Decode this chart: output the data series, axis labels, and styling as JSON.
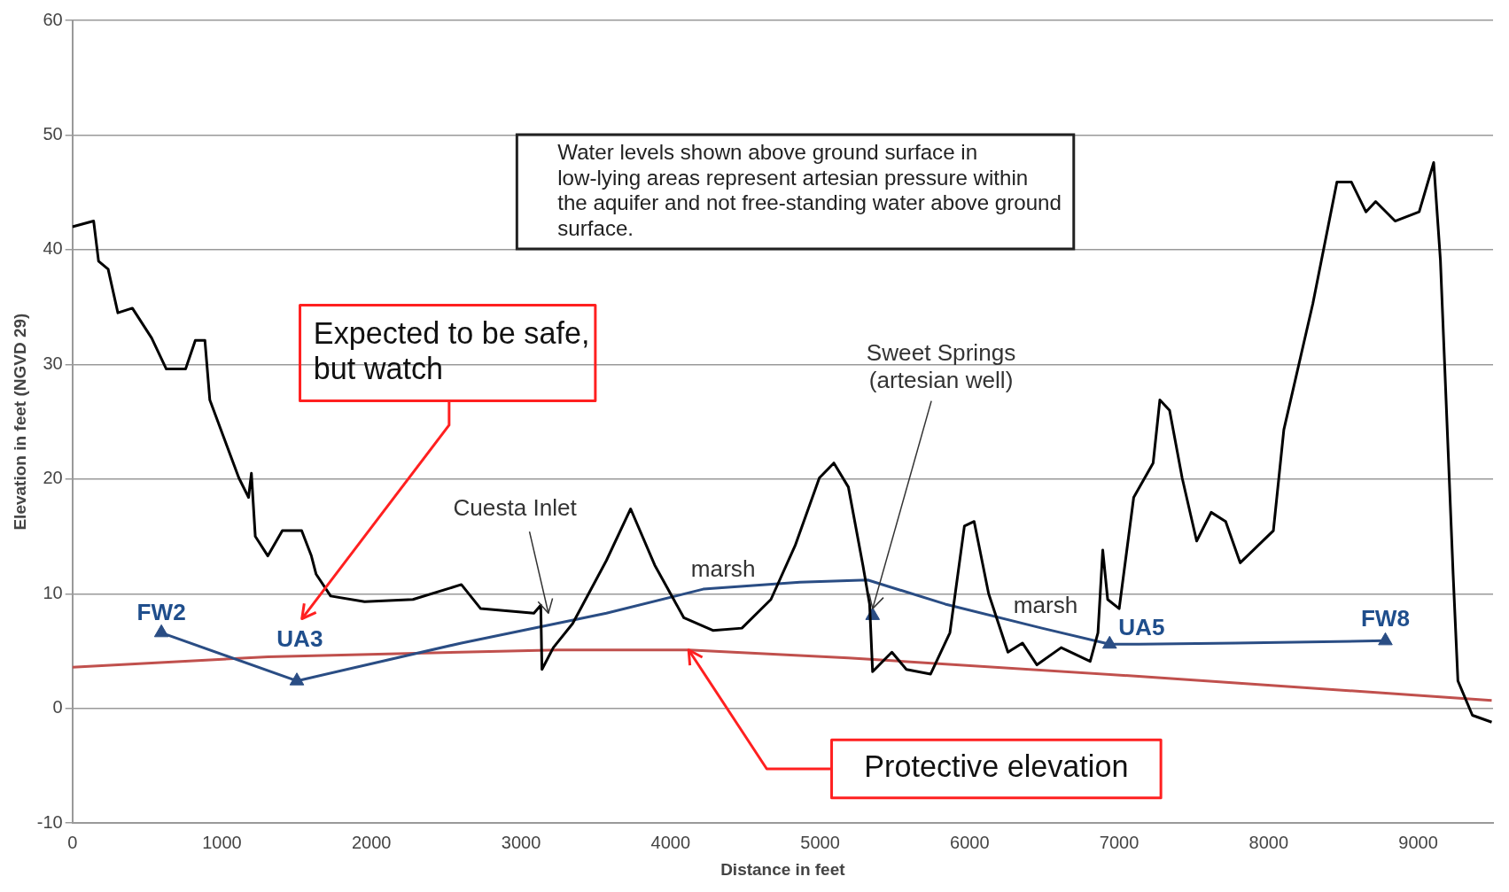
{
  "chart_data": {
    "type": "line",
    "xlabel": "Distance in feet",
    "ylabel": "Elevation in feet (NGVD 29)",
    "xlim": [
      0,
      9500
    ],
    "xticks": [
      0,
      1000,
      2000,
      3000,
      4000,
      5000,
      6000,
      7000,
      8000,
      9000
    ],
    "ylim": [
      -10,
      60
    ],
    "yticks": [
      -10,
      0,
      10,
      20,
      30,
      40,
      50,
      60
    ],
    "grid": "y",
    "legend": false,
    "series": [
      {
        "type": "line",
        "color": "#000000",
        "x": [
          0,
          142,
          175,
          239,
          304,
          401,
          530,
          628,
          757,
          822,
          886,
          919,
          1016,
          1113,
          1178,
          1197,
          1223,
          1307,
          1404,
          1533,
          1598,
          1630,
          1727,
          1954,
          2277,
          2601,
          2730,
          3086,
          3132,
          3140,
          3216,
          3345,
          3571,
          3733,
          3894,
          4089,
          4283,
          4477,
          4671,
          4833,
          4995,
          5092,
          5189,
          5286,
          5331,
          5351,
          5480,
          5577,
          5739,
          5868,
          5965,
          6030,
          6127,
          6256,
          6353,
          6450,
          6612,
          6806,
          6858,
          6890,
          6923,
          7000,
          7097,
          7227,
          7272,
          7337,
          7421,
          7518,
          7615,
          7712,
          7809,
          8031,
          8101,
          8295,
          8456,
          8553,
          8650,
          8715,
          8845,
          9006,
          9103,
          9148,
          9233,
          9265,
          9362,
          9491
        ],
        "values": [
          42,
          42.5,
          39,
          38.3,
          34.5,
          34.9,
          32.3,
          29.6,
          29.6,
          32.1,
          32.1,
          26.9,
          23.5,
          20.1,
          18.4,
          20.5,
          15,
          13.3,
          15.5,
          15.5,
          13.3,
          11.7,
          9.8,
          9.3,
          9.5,
          10.8,
          8.7,
          8.3,
          9,
          3.4,
          5.3,
          7.4,
          12.9,
          17.4,
          12.5,
          7.9,
          6.8,
          7,
          9.5,
          14.2,
          20.1,
          21.4,
          19.3,
          12.5,
          9.1,
          3.2,
          4.9,
          3.4,
          3,
          6.6,
          15.9,
          16.3,
          10,
          4.9,
          5.7,
          3.8,
          5.3,
          4.1,
          6.6,
          13.8,
          9.5,
          8.7,
          18.4,
          21.4,
          26.9,
          26,
          20.1,
          14.6,
          17.1,
          16.3,
          12.7,
          15.5,
          24.3,
          35.3,
          45.9,
          45.9,
          43.3,
          44.2,
          42.5,
          43.3,
          47.6,
          39.1,
          11.7,
          2.4,
          -0.6,
          -1.2
        ]
      },
      {
        "type": "line",
        "color": "#2a4d84",
        "x": [
          595,
          1501,
          2601,
          3571,
          4218,
          4865,
          5318,
          5836,
          6483,
          6936,
          7130,
          7777,
          8780
        ],
        "values": [
          6.6,
          2.4,
          5.7,
          8.3,
          10.4,
          11,
          11.2,
          9.1,
          7,
          5.6,
          5.6,
          5.7,
          5.9
        ]
      },
      {
        "type": "line",
        "color": "#c0504d",
        "x": [
          0,
          1307,
          3248,
          4121,
          5189,
          7130,
          9491
        ],
        "values": [
          3.6,
          4.5,
          5.1,
          5.1,
          4.4,
          2.8,
          0.7
        ]
      },
      {
        "type": "scatter",
        "color": "#2a4d84",
        "marker": "triangle",
        "x": [
          595,
          1501,
          5351,
          6936,
          8780
        ],
        "values": [
          6.6,
          2.4,
          8.1,
          5.6,
          5.9
        ]
      }
    ],
    "annotations": [
      "Water levels shown above ground surface in low-lying areas represent artesian pressure within the aquifer and not free-standing water above ground surface.",
      "Expected to be safe, but watch",
      {
        "text": "Protective elevation",
        "x": 4121,
        "y": 5.1
      },
      {
        "text": "Cuesta Inlet",
        "x": 3183,
        "y": 8.3
      },
      {
        "text": "Sweet Springs (artesian well)",
        "x": 5351,
        "y": 8.7
      },
      "marsh",
      "marsh",
      {
        "text": "FW2",
        "x": 595,
        "y": 6.6
      },
      {
        "text": "UA3",
        "x": 1501,
        "y": 2.4
      },
      {
        "text": "UA5",
        "x": 6936,
        "y": 5.6
      },
      {
        "text": "FW8",
        "x": 8780,
        "y": 5.9
      }
    ]
  }
}
